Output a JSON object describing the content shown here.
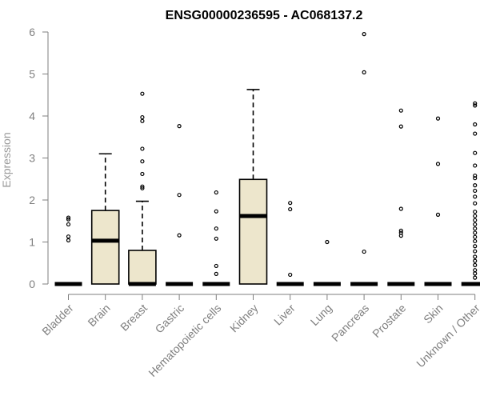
{
  "chart_data": {
    "type": "box",
    "title": "ENSG00000236595 - AC068137.2",
    "xlabel": "",
    "ylabel": "Expression",
    "ylim": [
      0,
      6
    ],
    "yticks": [
      0,
      1,
      2,
      3,
      4,
      5,
      6
    ],
    "grid": false,
    "categories": [
      "Bladder",
      "Brain",
      "Breast",
      "Gastric",
      "Hematopoietic cells",
      "Kidney",
      "Liver",
      "Lung",
      "Pancreas",
      "Prostate",
      "Skin",
      "Unknown / Other"
    ],
    "boxes": [
      {
        "category": "Bladder",
        "q1": 0,
        "median": 0,
        "q3": 0,
        "whisker_low": 0,
        "whisker_high": 0,
        "outliers": [
          1.04,
          1.13,
          1.42,
          1.54,
          1.58
        ]
      },
      {
        "category": "Brain",
        "q1": 0,
        "median": 1.03,
        "q3": 1.75,
        "whisker_low": 0,
        "whisker_high": 3.1,
        "outliers": []
      },
      {
        "category": "Breast",
        "q1": 0,
        "median": 0,
        "q3": 0.8,
        "whisker_low": 0,
        "whisker_high": 1.97,
        "outliers": [
          2.28,
          2.32,
          2.62,
          2.92,
          3.22,
          3.88,
          3.97,
          4.53
        ]
      },
      {
        "category": "Gastric",
        "q1": 0,
        "median": 0,
        "q3": 0,
        "whisker_low": 0,
        "whisker_high": 0,
        "outliers": [
          1.16,
          2.12,
          3.76
        ]
      },
      {
        "category": "Hematopoietic cells",
        "q1": 0,
        "median": 0,
        "q3": 0,
        "whisker_low": 0,
        "whisker_high": 0,
        "outliers": [
          0.24,
          0.43,
          1.08,
          1.32,
          1.73,
          2.18
        ]
      },
      {
        "category": "Kidney",
        "q1": 0,
        "median": 1.62,
        "q3": 2.49,
        "whisker_low": 0,
        "whisker_high": 4.63,
        "outliers": []
      },
      {
        "category": "Liver",
        "q1": 0,
        "median": 0,
        "q3": 0,
        "whisker_low": 0,
        "whisker_high": 0,
        "outliers": [
          0.22,
          1.78,
          1.93
        ]
      },
      {
        "category": "Lung",
        "q1": 0,
        "median": 0,
        "q3": 0,
        "whisker_low": 0,
        "whisker_high": 0,
        "outliers": [
          1.0
        ]
      },
      {
        "category": "Pancreas",
        "q1": 0,
        "median": 0,
        "q3": 0,
        "whisker_low": 0,
        "whisker_high": 0,
        "outliers": [
          0.77,
          5.04,
          5.95
        ]
      },
      {
        "category": "Prostate",
        "q1": 0,
        "median": 0,
        "q3": 0,
        "whisker_low": 0,
        "whisker_high": 0,
        "outliers": [
          1.15,
          1.22,
          1.27,
          1.79,
          3.75,
          4.13
        ]
      },
      {
        "category": "Skin",
        "q1": 0,
        "median": 0,
        "q3": 0,
        "whisker_low": 0,
        "whisker_high": 0,
        "outliers": [
          1.65,
          2.86,
          3.94
        ]
      },
      {
        "category": "Unknown / Other",
        "q1": 0,
        "median": 0,
        "q3": 0,
        "whisker_low": 0,
        "whisker_high": 0,
        "outliers": [
          0.15,
          0.25,
          0.33,
          0.45,
          0.55,
          0.65,
          0.78,
          0.9,
          1.02,
          1.12,
          1.22,
          1.32,
          1.42,
          1.52,
          1.62,
          1.72,
          1.92,
          2.08,
          2.22,
          2.35,
          2.52,
          2.58,
          2.82,
          3.12,
          3.58,
          3.8,
          4.25,
          4.3
        ]
      }
    ],
    "colors": {
      "box_fill": "#ede6cc",
      "stroke": "#000000",
      "axis": "#7f7f7f"
    }
  }
}
